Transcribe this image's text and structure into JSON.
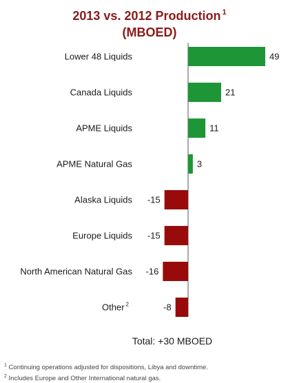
{
  "title": {
    "line1": "2013 vs. 2012 Production",
    "line1_sup": "1",
    "line2": "(MBOED)"
  },
  "chart_data": {
    "type": "bar",
    "orientation": "horizontal",
    "title": "2013 vs. 2012 Production (MBOED)",
    "categories": [
      "Lower 48 Liquids",
      "Canada Liquids",
      "APME Liquids",
      "APME Natural Gas",
      "Alaska Liquids",
      "Europe Liquids",
      "North American Natural Gas",
      "Other"
    ],
    "category_sups": [
      "",
      "",
      "",
      "",
      "",
      "",
      "",
      "2"
    ],
    "values": [
      49,
      21,
      11,
      3,
      -15,
      -15,
      -16,
      -8
    ],
    "positive_color": "#1e9637",
    "negative_color": "#990b0b",
    "xlim": [
      -22,
      52
    ],
    "legend": "none",
    "grid": false
  },
  "total_label": "Total: +30 MBOED",
  "footnotes": [
    {
      "sup": "1",
      "text": "Continuing operations adjusted for dispositions, Libya and downtime."
    },
    {
      "sup": "2",
      "text": "Includes Europe and Other International natural gas."
    }
  ]
}
